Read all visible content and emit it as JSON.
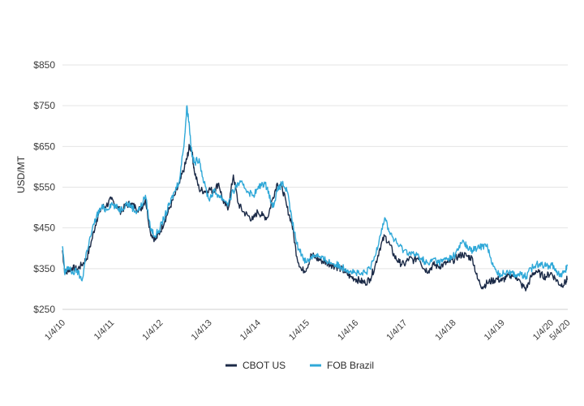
{
  "chart_data": {
    "type": "line",
    "title": "",
    "xlabel": "",
    "ylabel": "USD/MT",
    "ylim": [
      250,
      850
    ],
    "yticks": [
      250,
      350,
      450,
      550,
      650,
      750,
      850
    ],
    "ytick_labels": [
      "$250",
      "$350",
      "$450",
      "$550",
      "$650",
      "$750",
      "$850"
    ],
    "xlim": [
      2010.0,
      2020.35
    ],
    "xticks": [
      2010.0,
      2011.0,
      2012.0,
      2013.0,
      2014.0,
      2015.0,
      2016.0,
      2017.0,
      2018.0,
      2019.0,
      2020.0,
      2020.34
    ],
    "xtick_labels": [
      "1/4/10",
      "1/4/11",
      "1/4/12",
      "1/4/13",
      "1/4/14",
      "1/4/15",
      "1/4/16",
      "1/4/17",
      "1/4/18",
      "1/4/19",
      "1/4/20",
      "5/4/20"
    ],
    "grid": "horizontal",
    "legend_position": "bottom-center",
    "series": [
      {
        "name": "CBOT US",
        "color": "#1b2a47",
        "x": [
          2010.0,
          2010.05,
          2010.1,
          2010.2,
          2010.3,
          2010.4,
          2010.5,
          2010.6,
          2010.7,
          2010.8,
          2010.9,
          2011.0,
          2011.1,
          2011.2,
          2011.3,
          2011.4,
          2011.5,
          2011.6,
          2011.7,
          2011.8,
          2011.9,
          2012.0,
          2012.1,
          2012.2,
          2012.3,
          2012.4,
          2012.5,
          2012.55,
          2012.6,
          2012.65,
          2012.7,
          2012.8,
          2012.9,
          2013.0,
          2013.1,
          2013.2,
          2013.3,
          2013.4,
          2013.5,
          2013.6,
          2013.7,
          2013.8,
          2013.9,
          2014.0,
          2014.1,
          2014.2,
          2014.3,
          2014.4,
          2014.5,
          2014.6,
          2014.7,
          2014.8,
          2014.9,
          2015.0,
          2015.1,
          2015.2,
          2015.3,
          2015.4,
          2015.5,
          2015.6,
          2015.7,
          2015.8,
          2015.9,
          2016.0,
          2016.1,
          2016.2,
          2016.3,
          2016.4,
          2016.5,
          2016.6,
          2016.7,
          2016.8,
          2016.9,
          2017.0,
          2017.1,
          2017.2,
          2017.3,
          2017.4,
          2017.5,
          2017.6,
          2017.7,
          2017.8,
          2017.9,
          2018.0,
          2018.1,
          2018.2,
          2018.3,
          2018.4,
          2018.5,
          2018.6,
          2018.7,
          2018.8,
          2018.9,
          2019.0,
          2019.1,
          2019.2,
          2019.3,
          2019.4,
          2019.5,
          2019.6,
          2019.7,
          2019.8,
          2019.9,
          2020.0,
          2020.1,
          2020.2,
          2020.3,
          2020.34
        ],
        "y": [
          395,
          340,
          345,
          352,
          348,
          360,
          375,
          420,
          470,
          500,
          505,
          520,
          505,
          490,
          505,
          510,
          500,
          495,
          520,
          440,
          420,
          440,
          470,
          500,
          530,
          560,
          600,
          620,
          650,
          640,
          590,
          545,
          540,
          545,
          540,
          560,
          510,
          500,
          580,
          510,
          490,
          480,
          470,
          490,
          480,
          475,
          520,
          560,
          550,
          500,
          460,
          380,
          345,
          350,
          385,
          375,
          370,
          365,
          360,
          355,
          350,
          340,
          330,
          325,
          320,
          315,
          325,
          355,
          400,
          430,
          410,
          380,
          365,
          360,
          375,
          370,
          380,
          350,
          345,
          360,
          355,
          360,
          365,
          370,
          380,
          385,
          380,
          375,
          325,
          305,
          315,
          320,
          325,
          320,
          330,
          335,
          330,
          310,
          300,
          330,
          345,
          335,
          330,
          340,
          325,
          310,
          315,
          325
        ]
      },
      {
        "name": "FOB Brazil",
        "color": "#2fa8d8",
        "x": [
          2010.0,
          2010.05,
          2010.1,
          2010.2,
          2010.3,
          2010.4,
          2010.5,
          2010.6,
          2010.7,
          2010.8,
          2010.9,
          2011.0,
          2011.1,
          2011.2,
          2011.3,
          2011.4,
          2011.5,
          2011.6,
          2011.7,
          2011.8,
          2011.9,
          2012.0,
          2012.1,
          2012.2,
          2012.3,
          2012.4,
          2012.5,
          2012.55,
          2012.6,
          2012.65,
          2012.7,
          2012.8,
          2012.9,
          2013.0,
          2013.1,
          2013.2,
          2013.3,
          2013.4,
          2013.5,
          2013.6,
          2013.7,
          2013.8,
          2013.9,
          2014.0,
          2014.1,
          2014.2,
          2014.3,
          2014.4,
          2014.5,
          2014.6,
          2014.7,
          2014.8,
          2014.9,
          2015.0,
          2015.1,
          2015.2,
          2015.3,
          2015.4,
          2015.5,
          2015.6,
          2015.7,
          2015.8,
          2015.9,
          2016.0,
          2016.1,
          2016.2,
          2016.3,
          2016.4,
          2016.5,
          2016.6,
          2016.7,
          2016.8,
          2016.9,
          2017.0,
          2017.1,
          2017.2,
          2017.3,
          2017.4,
          2017.5,
          2017.6,
          2017.7,
          2017.8,
          2017.9,
          2018.0,
          2018.1,
          2018.2,
          2018.3,
          2018.4,
          2018.5,
          2018.6,
          2018.7,
          2018.8,
          2018.9,
          2019.0,
          2019.1,
          2019.2,
          2019.3,
          2019.4,
          2019.5,
          2019.6,
          2019.7,
          2019.8,
          2019.9,
          2020.0,
          2020.1,
          2020.2,
          2020.3,
          2020.34
        ],
        "y": [
          405,
          335,
          355,
          340,
          345,
          320,
          395,
          440,
          480,
          500,
          495,
          510,
          500,
          495,
          510,
          505,
          490,
          500,
          530,
          450,
          430,
          450,
          480,
          510,
          540,
          570,
          670,
          750,
          700,
          630,
          610,
          620,
          560,
          520,
          540,
          530,
          520,
          510,
          540,
          560,
          555,
          540,
          530,
          545,
          560,
          550,
          500,
          540,
          560,
          540,
          470,
          410,
          385,
          365,
          380,
          385,
          375,
          370,
          365,
          360,
          355,
          350,
          345,
          340,
          335,
          340,
          350,
          380,
          430,
          475,
          440,
          420,
          405,
          395,
          390,
          385,
          380,
          370,
          360,
          375,
          365,
          370,
          375,
          380,
          395,
          420,
          400,
          395,
          400,
          405,
          410,
          360,
          340,
          335,
          345,
          340,
          335,
          335,
          330,
          350,
          360,
          365,
          355,
          360,
          350,
          330,
          345,
          360
        ]
      }
    ]
  }
}
